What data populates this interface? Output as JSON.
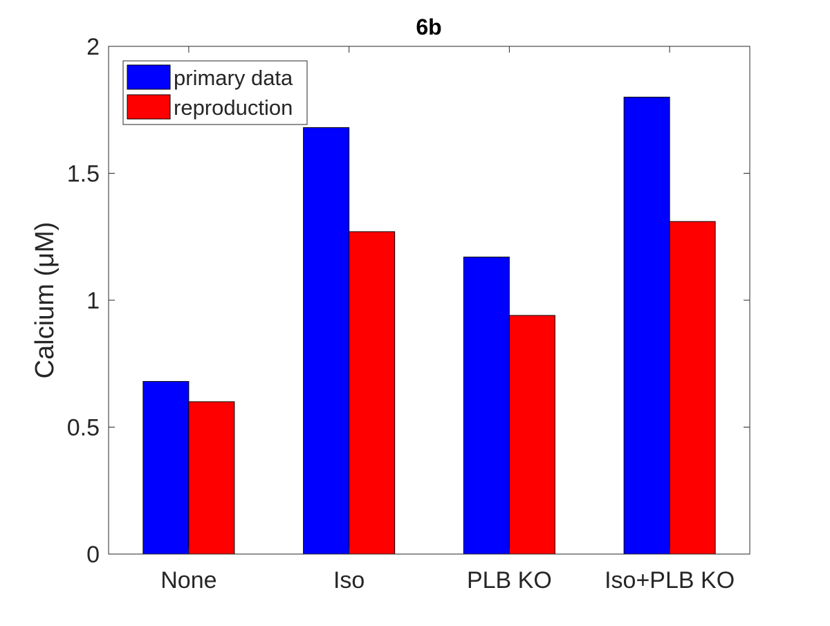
{
  "chart_data": {
    "type": "bar",
    "title": "6b",
    "xlabel": "",
    "ylabel": "Calcium (μM)",
    "ylim": [
      0,
      2
    ],
    "yticks": [
      "0",
      "0.5",
      "1",
      "1.5",
      "2"
    ],
    "categories": [
      "None",
      "Iso",
      "PLB KO",
      "Iso+PLB KO"
    ],
    "series": [
      {
        "name": "primary data",
        "color": "#0000ff",
        "values": [
          0.68,
          1.68,
          1.17,
          1.8
        ]
      },
      {
        "name": "reproduction",
        "color": "#ff0000",
        "values": [
          0.6,
          1.27,
          0.94,
          1.31
        ]
      }
    ],
    "legend_position": "top-left",
    "grid": false
  }
}
